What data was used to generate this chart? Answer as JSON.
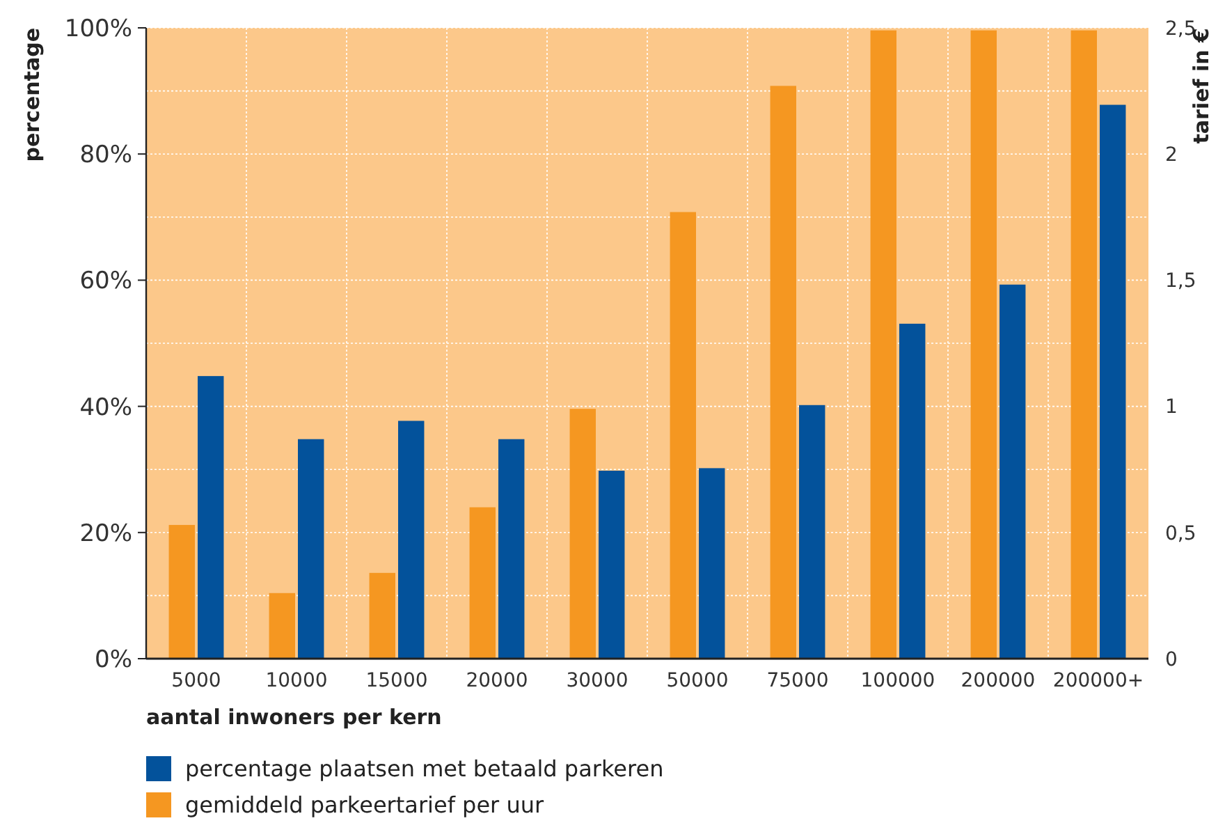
{
  "chart_data": {
    "type": "bar",
    "categories": [
      "5000",
      "10000",
      "15000",
      "20000",
      "30000",
      "50000",
      "75000",
      "100000",
      "200000",
      "200000+"
    ],
    "series": [
      {
        "name": "percentage plaatsen met betaald parkeren",
        "color": "#03529b",
        "values": [
          44.8,
          34.8,
          37.7,
          34.8,
          29.8,
          30.2,
          40.2,
          53.1,
          59.3,
          87.8
        ]
      },
      {
        "name": "gemiddeld parkeertarief per uur",
        "color": "#f59721",
        "axis": "y2",
        "values": [
          0.53,
          0.26,
          0.34,
          0.6,
          0.99,
          1.77,
          2.27,
          2.49,
          2.49,
          2.49
        ]
      }
    ],
    "xlabel": "aantal inwoners per kern",
    "ylabel": "percentage",
    "y2label": "tarief in €",
    "ylim": [
      0,
      100
    ],
    "yticks": [
      {
        "value": 0,
        "label": "0%"
      },
      {
        "value": 20,
        "label": "20%"
      },
      {
        "value": 40,
        "label": "40%"
      },
      {
        "value": 60,
        "label": "60%"
      },
      {
        "value": 80,
        "label": "80%"
      },
      {
        "value": 100,
        "label": "100%"
      }
    ],
    "y2lim": [
      0,
      2.5
    ],
    "y2ticks": [
      {
        "value": 0,
        "label": "0"
      },
      {
        "value": 0.5,
        "label": "0,5"
      },
      {
        "value": 1,
        "label": "1"
      },
      {
        "value": 1.5,
        "label": "1,5"
      },
      {
        "value": 2,
        "label": "2"
      },
      {
        "value": 2.5,
        "label": "2,5"
      }
    ],
    "grid": true,
    "legend": "bottom"
  }
}
